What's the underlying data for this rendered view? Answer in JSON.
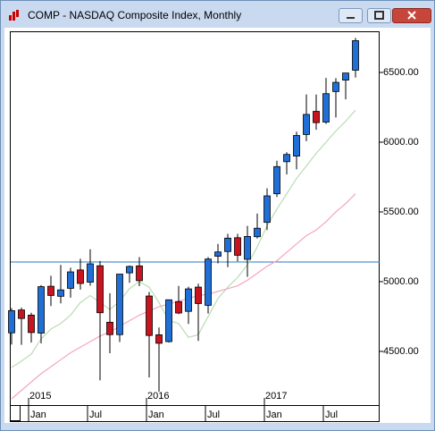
{
  "chart_data": {
    "type": "candlestick",
    "title": "COMP - NASDAQ Composite Index, Monthly",
    "x": [
      "2014-11",
      "2014-12",
      "2015-01",
      "2015-02",
      "2015-03",
      "2015-04",
      "2015-05",
      "2015-06",
      "2015-07",
      "2015-08",
      "2015-09",
      "2015-10",
      "2015-11",
      "2015-12",
      "2016-01",
      "2016-02",
      "2016-03",
      "2016-04",
      "2016-05",
      "2016-06",
      "2016-07",
      "2016-08",
      "2016-09",
      "2016-10",
      "2016-11",
      "2016-12",
      "2017-01",
      "2017-02",
      "2017-03",
      "2017-04",
      "2017-05",
      "2017-06",
      "2017-07",
      "2017-08",
      "2017-09",
      "2017-10"
    ],
    "open": [
      4633,
      4797,
      4760,
      4631,
      4967,
      4895,
      4952,
      5084,
      4996,
      5114,
      4709,
      4620,
      5063,
      5113,
      4897,
      4619,
      4570,
      4857,
      4787,
      4961,
      4830,
      5182,
      5216,
      5315,
      5160,
      5322,
      5425,
      5630,
      5860,
      5900,
      6055,
      6221,
      6144,
      6363,
      6445,
      6516
    ],
    "high": [
      4810,
      4814,
      4777,
      4975,
      5042,
      5120,
      5100,
      5164,
      5232,
      5148,
      4917,
      5034,
      5116,
      5176,
      4926,
      4671,
      4870,
      4969,
      4964,
      4985,
      5176,
      5271,
      5343,
      5343,
      5400,
      5488,
      5669,
      5867,
      5928,
      6075,
      6342,
      6341,
      6461,
      6459,
      6497,
      6748
    ],
    "low": [
      4549,
      4547,
      4563,
      4557,
      4825,
      4844,
      4885,
      4943,
      4971,
      4292,
      4487,
      4567,
      4992,
      4968,
      4313,
      4210,
      4563,
      4767,
      4697,
      4575,
      4771,
      5131,
      5104,
      5146,
      5034,
      5309,
      5370,
      5607,
      5769,
      5805,
      6007,
      6089,
      6131,
      6177,
      6307,
      6463
    ],
    "close": [
      4792,
      4736,
      4635,
      4964,
      4901,
      4941,
      5070,
      4987,
      5128,
      4777,
      4620,
      5054,
      5109,
      5007,
      4614,
      4558,
      4870,
      4775,
      4948,
      4843,
      5162,
      5213,
      5312,
      5189,
      5324,
      5383,
      5615,
      5825,
      5912,
      6048,
      6199,
      6140,
      6348,
      6429,
      6496,
      6728
    ],
    "up_color": "#1f6fd6",
    "down_color": "#c8141e",
    "overlays": [
      {
        "color": "#b9dcb4",
        "values": [
          4385,
          4430,
          4480,
          4590,
          4660,
          4700,
          4760,
          4850,
          4900,
          4850,
          4800,
          4860,
          4950,
          5000,
          4960,
          4850,
          4720,
          4700,
          4600,
          4620,
          4750,
          4880,
          4960,
          5030,
          5120,
          5250,
          5400,
          5520,
          5630,
          5740,
          5830,
          5920,
          6000,
          6080,
          6150,
          6230
        ]
      },
      {
        "color": "#f2a6c0",
        "values": [
          4160,
          4220,
          4280,
          4340,
          4390,
          4440,
          4490,
          4530,
          4570,
          4610,
          4640,
          4680,
          4720,
          4760,
          4790,
          4820,
          4840,
          4860,
          4880,
          4900,
          4910,
          4930,
          4950,
          4970,
          5010,
          5060,
          5110,
          5150,
          5210,
          5270,
          5330,
          5370,
          5430,
          5500,
          5560,
          5630
        ]
      }
    ],
    "hline": {
      "value": 5141,
      "color": "#2a78c4"
    },
    "ylim": [
      4115,
      6795
    ],
    "yticks": [
      {
        "value": 4500,
        "label": "4500.00"
      },
      {
        "value": 5000,
        "label": "5000.00"
      },
      {
        "value": 5500,
        "label": "5500.00"
      },
      {
        "value": 6000,
        "label": "6000.00"
      },
      {
        "value": 6500,
        "label": "6500.00"
      }
    ],
    "xticks": [
      {
        "value": "2015-01",
        "label": "Jan"
      },
      {
        "value": "2015-07",
        "label": "Jul"
      },
      {
        "value": "2016-01",
        "label": "Jan"
      },
      {
        "value": "2016-07",
        "label": "Jul"
      },
      {
        "value": "2017-01",
        "label": "Jan"
      },
      {
        "value": "2017-07",
        "label": "Jul"
      }
    ],
    "year_labels": [
      {
        "value": "2015-01",
        "label": "2015"
      },
      {
        "value": "2016-01",
        "label": "2016"
      },
      {
        "value": "2017-01",
        "label": "2017"
      }
    ]
  }
}
